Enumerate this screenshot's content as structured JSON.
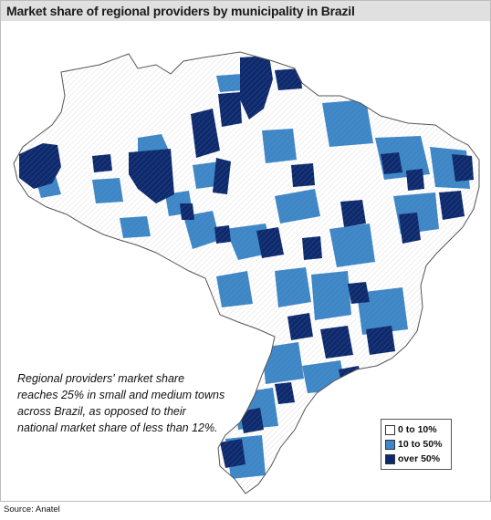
{
  "title": "Market share of regional providers by municipality in Brazil",
  "note_lines": [
    "Regional providers' market share",
    "reaches 25% in small and medium towns",
    "across Brazil, as opposed to their",
    "national market share of less than 12%."
  ],
  "legend": {
    "items": [
      {
        "label": "0 to 10%",
        "color": "#ffffff"
      },
      {
        "label": "10 to 50%",
        "color": "#3d87c8"
      },
      {
        "label": "over 50%",
        "color": "#0d2a6e"
      }
    ]
  },
  "source": "Source: Anatel",
  "colors": {
    "low": "#ffffff",
    "mid": "#3d87c8",
    "high": "#0d2a6e",
    "border": "#8a8a8a"
  }
}
